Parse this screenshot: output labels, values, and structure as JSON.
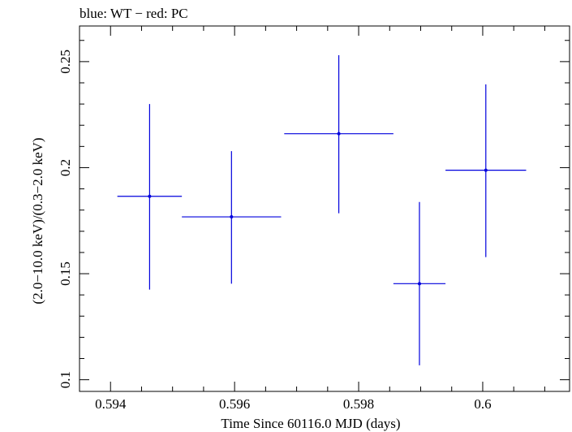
{
  "chart_data": {
    "type": "scatter",
    "title": "blue: WT − red: PC",
    "xlabel": "Time Since 60116.0 MJD (days)",
    "ylabel": "(2.0−10.0 keV)/(0.3−2.0 keV)",
    "xlim": [
      0.5935,
      0.6014
    ],
    "ylim": [
      0.0945,
      0.2668
    ],
    "x_ticks": [
      0.594,
      0.596,
      0.598,
      0.6
    ],
    "x_tick_labels": [
      "0.594",
      "0.596",
      "0.598",
      "0.6"
    ],
    "y_ticks": [
      0.1,
      0.15,
      0.2,
      0.25
    ],
    "y_tick_labels": [
      "0.1",
      "0.15",
      "0.2",
      "0.25"
    ],
    "grid": false,
    "series": [
      {
        "color": "#0000dd",
        "points": [
          {
            "x": 0.59463,
            "y": 0.1865,
            "xerr_lo": 0.00052,
            "xerr_hi": 0.00052,
            "yerr_lo": 0.044,
            "yerr_hi": 0.0435
          },
          {
            "x": 0.59595,
            "y": 0.1768,
            "xerr_lo": 0.0008,
            "xerr_hi": 0.0008,
            "yerr_lo": 0.0315,
            "yerr_hi": 0.031
          },
          {
            "x": 0.59768,
            "y": 0.216,
            "xerr_lo": 0.00088,
            "xerr_hi": 0.00088,
            "yerr_lo": 0.0375,
            "yerr_hi": 0.037
          },
          {
            "x": 0.59898,
            "y": 0.1453,
            "xerr_lo": 0.00042,
            "xerr_hi": 0.00042,
            "yerr_lo": 0.0385,
            "yerr_hi": 0.0385
          },
          {
            "x": 0.60005,
            "y": 0.1988,
            "xerr_lo": 0.00065,
            "xerr_hi": 0.00065,
            "yerr_lo": 0.041,
            "yerr_hi": 0.0405
          }
        ]
      }
    ]
  }
}
